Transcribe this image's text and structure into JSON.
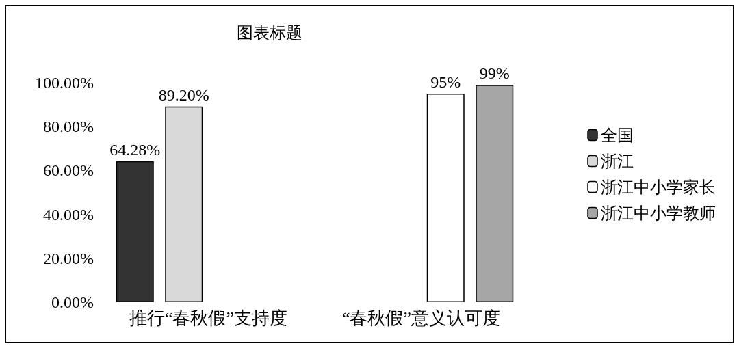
{
  "chart_data": {
    "type": "bar",
    "title": "图表标题",
    "categories": [
      "推行“春秋假”支持度",
      "“春秋假”意义认可度"
    ],
    "series": [
      {
        "name": "全国",
        "color": "#333333",
        "values": [
          64.28,
          null
        ],
        "value_labels": [
          "64.28%",
          null
        ]
      },
      {
        "name": "浙江",
        "color": "#d9d9d9",
        "values": [
          89.2,
          null
        ],
        "value_labels": [
          "89.20%",
          null
        ]
      },
      {
        "name": "浙江中小学家长",
        "color": "#ffffff",
        "values": [
          null,
          95
        ],
        "value_labels": [
          null,
          "95%"
        ]
      },
      {
        "name": "浙江中小学教师",
        "color": "#a6a6a6",
        "values": [
          null,
          99
        ],
        "value_labels": [
          null,
          "99%"
        ]
      }
    ],
    "ylim": [
      0,
      100
    ],
    "yticks": [
      {
        "value": 0,
        "label": "0.00%"
      },
      {
        "value": 20,
        "label": "20.00%"
      },
      {
        "value": 40,
        "label": "40.00%"
      },
      {
        "value": 60,
        "label": "60.00%"
      },
      {
        "value": 80,
        "label": "80.00%"
      },
      {
        "value": 100,
        "label": "100.00%"
      }
    ],
    "grid": false,
    "legend": "right"
  }
}
